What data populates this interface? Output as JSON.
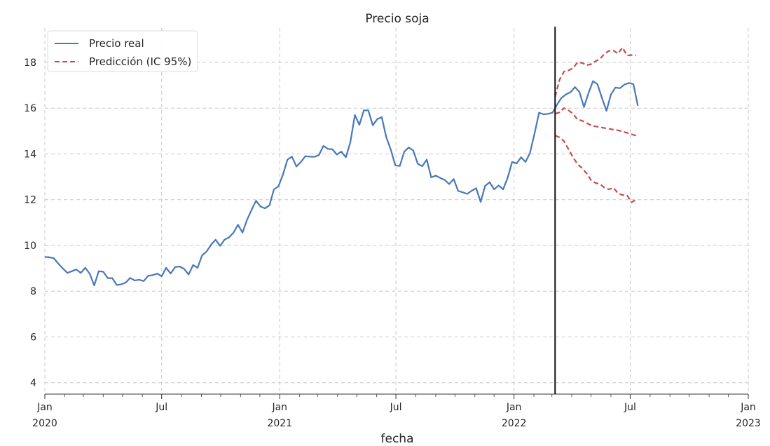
{
  "chart_data": {
    "type": "line",
    "title": "Precio soja",
    "xlabel": "fecha",
    "ylabel": "",
    "ylim": [
      3.5,
      19.5
    ],
    "xlim": [
      "2020-01-01",
      "2023-01-01"
    ],
    "grid": true,
    "legend_position": "top-left",
    "y_ticks": [
      "4",
      "6",
      "8",
      "10",
      "12",
      "14",
      "16",
      "18"
    ],
    "x_ticks": [
      {
        "date": "2020-01-01",
        "line1": "Jan",
        "line2": "2020"
      },
      {
        "date": "2020-07-01",
        "line1": "Jul",
        "line2": ""
      },
      {
        "date": "2021-01-01",
        "line1": "Jan",
        "line2": "2021"
      },
      {
        "date": "2021-07-01",
        "line1": "Jul",
        "line2": ""
      },
      {
        "date": "2022-01-01",
        "line1": "Jan",
        "line2": "2022"
      },
      {
        "date": "2022-07-01",
        "line1": "Jul",
        "line2": ""
      },
      {
        "date": "2023-01-01",
        "line1": "Jan",
        "line2": "2023"
      }
    ],
    "forecast_start": "2022-03-06",
    "series": [
      {
        "name": "Precio real",
        "color": "#4878b9",
        "style": "solid",
        "points": [
          [
            "2020-01-01",
            9.5
          ],
          [
            "2020-01-08",
            9.48
          ],
          [
            "2020-01-15",
            9.44
          ],
          [
            "2020-01-22",
            9.2
          ],
          [
            "2020-01-29",
            9.0
          ],
          [
            "2020-02-05",
            8.8
          ],
          [
            "2020-02-12",
            8.87
          ],
          [
            "2020-02-19",
            8.95
          ],
          [
            "2020-02-26",
            8.8
          ],
          [
            "2020-03-04",
            9.02
          ],
          [
            "2020-03-11",
            8.76
          ],
          [
            "2020-03-18",
            8.25
          ],
          [
            "2020-03-25",
            8.87
          ],
          [
            "2020-04-01",
            8.85
          ],
          [
            "2020-04-08",
            8.57
          ],
          [
            "2020-04-15",
            8.57
          ],
          [
            "2020-04-22",
            8.27
          ],
          [
            "2020-04-29",
            8.3
          ],
          [
            "2020-05-06",
            8.37
          ],
          [
            "2020-05-13",
            8.58
          ],
          [
            "2020-05-20",
            8.47
          ],
          [
            "2020-05-27",
            8.5
          ],
          [
            "2020-06-03",
            8.44
          ],
          [
            "2020-06-10",
            8.67
          ],
          [
            "2020-06-17",
            8.7
          ],
          [
            "2020-06-24",
            8.77
          ],
          [
            "2020-07-01",
            8.65
          ],
          [
            "2020-07-08",
            9.02
          ],
          [
            "2020-07-15",
            8.77
          ],
          [
            "2020-07-22",
            9.05
          ],
          [
            "2020-07-29",
            9.08
          ],
          [
            "2020-08-05",
            8.97
          ],
          [
            "2020-08-12",
            8.73
          ],
          [
            "2020-08-19",
            9.14
          ],
          [
            "2020-08-26",
            9.02
          ],
          [
            "2020-09-02",
            9.56
          ],
          [
            "2020-09-09",
            9.73
          ],
          [
            "2020-09-16",
            10.03
          ],
          [
            "2020-09-23",
            10.25
          ],
          [
            "2020-09-30",
            9.98
          ],
          [
            "2020-10-07",
            10.25
          ],
          [
            "2020-10-14",
            10.35
          ],
          [
            "2020-10-21",
            10.56
          ],
          [
            "2020-10-28",
            10.9
          ],
          [
            "2020-11-04",
            10.56
          ],
          [
            "2020-11-11",
            11.12
          ],
          [
            "2020-11-18",
            11.55
          ],
          [
            "2020-11-25",
            11.95
          ],
          [
            "2020-12-02",
            11.7
          ],
          [
            "2020-12-09",
            11.62
          ],
          [
            "2020-12-16",
            11.75
          ],
          [
            "2020-12-23",
            12.45
          ],
          [
            "2020-12-30",
            12.58
          ],
          [
            "2021-01-06",
            13.1
          ],
          [
            "2021-01-13",
            13.75
          ],
          [
            "2021-01-20",
            13.88
          ],
          [
            "2021-01-27",
            13.45
          ],
          [
            "2021-02-03",
            13.65
          ],
          [
            "2021-02-10",
            13.9
          ],
          [
            "2021-02-17",
            13.88
          ],
          [
            "2021-02-24",
            13.87
          ],
          [
            "2021-03-03",
            13.95
          ],
          [
            "2021-03-10",
            14.35
          ],
          [
            "2021-03-17",
            14.22
          ],
          [
            "2021-03-24",
            14.2
          ],
          [
            "2021-03-31",
            13.97
          ],
          [
            "2021-04-07",
            14.1
          ],
          [
            "2021-04-14",
            13.85
          ],
          [
            "2021-04-21",
            14.5
          ],
          [
            "2021-04-28",
            15.7
          ],
          [
            "2021-05-05",
            15.27
          ],
          [
            "2021-05-12",
            15.9
          ],
          [
            "2021-05-19",
            15.9
          ],
          [
            "2021-05-26",
            15.25
          ],
          [
            "2021-06-02",
            15.52
          ],
          [
            "2021-06-09",
            15.6
          ],
          [
            "2021-06-16",
            14.73
          ],
          [
            "2021-06-23",
            14.18
          ],
          [
            "2021-06-30",
            13.5
          ],
          [
            "2021-07-07",
            13.47
          ],
          [
            "2021-07-14",
            14.1
          ],
          [
            "2021-07-21",
            14.28
          ],
          [
            "2021-07-28",
            14.15
          ],
          [
            "2021-08-04",
            13.57
          ],
          [
            "2021-08-11",
            13.46
          ],
          [
            "2021-08-18",
            13.75
          ],
          [
            "2021-08-25",
            12.97
          ],
          [
            "2021-09-01",
            13.05
          ],
          [
            "2021-09-08",
            12.95
          ],
          [
            "2021-09-15",
            12.86
          ],
          [
            "2021-09-22",
            12.68
          ],
          [
            "2021-09-29",
            12.9
          ],
          [
            "2021-10-06",
            12.38
          ],
          [
            "2021-10-13",
            12.32
          ],
          [
            "2021-10-20",
            12.25
          ],
          [
            "2021-10-27",
            12.39
          ],
          [
            "2021-11-03",
            12.5
          ],
          [
            "2021-11-10",
            11.9
          ],
          [
            "2021-11-17",
            12.6
          ],
          [
            "2021-11-24",
            12.76
          ],
          [
            "2021-12-01",
            12.45
          ],
          [
            "2021-12-08",
            12.62
          ],
          [
            "2021-12-15",
            12.45
          ],
          [
            "2021-12-22",
            12.95
          ],
          [
            "2021-12-29",
            13.65
          ],
          [
            "2022-01-05",
            13.58
          ],
          [
            "2022-01-12",
            13.85
          ],
          [
            "2022-01-19",
            13.65
          ],
          [
            "2022-01-26",
            14.05
          ],
          [
            "2022-02-02",
            14.9
          ],
          [
            "2022-02-09",
            15.8
          ],
          [
            "2022-02-16",
            15.73
          ],
          [
            "2022-02-23",
            15.75
          ],
          [
            "2022-03-02",
            15.8
          ],
          [
            "2022-03-09",
            16.15
          ],
          [
            "2022-03-16",
            16.45
          ],
          [
            "2022-03-23",
            16.6
          ],
          [
            "2022-03-30",
            16.7
          ],
          [
            "2022-04-06",
            16.92
          ],
          [
            "2022-04-13",
            16.7
          ],
          [
            "2022-04-20",
            16.05
          ],
          [
            "2022-04-27",
            16.65
          ],
          [
            "2022-05-04",
            17.18
          ],
          [
            "2022-05-11",
            17.05
          ],
          [
            "2022-05-18",
            16.45
          ],
          [
            "2022-05-25",
            15.88
          ],
          [
            "2022-06-01",
            16.6
          ],
          [
            "2022-06-08",
            16.9
          ],
          [
            "2022-06-15",
            16.87
          ],
          [
            "2022-06-22",
            17.03
          ],
          [
            "2022-06-29",
            17.1
          ],
          [
            "2022-07-06",
            17.05
          ],
          [
            "2022-07-13",
            16.1
          ]
        ]
      },
      {
        "name": "Predicción (IC 95%)",
        "color": "#c44e52",
        "style": "dashed",
        "points": [
          [
            "2022-03-06",
            16.5
          ],
          [
            "2022-03-13",
            17.25
          ],
          [
            "2022-03-20",
            17.6
          ],
          [
            "2022-03-27",
            17.65
          ],
          [
            "2022-04-03",
            17.75
          ],
          [
            "2022-04-10",
            18.0
          ],
          [
            "2022-04-17",
            17.98
          ],
          [
            "2022-04-24",
            17.88
          ],
          [
            "2022-05-01",
            17.92
          ],
          [
            "2022-05-08",
            18.05
          ],
          [
            "2022-05-15",
            18.15
          ],
          [
            "2022-05-22",
            18.38
          ],
          [
            "2022-05-29",
            18.5
          ],
          [
            "2022-06-05",
            18.52
          ],
          [
            "2022-06-12",
            18.38
          ],
          [
            "2022-06-19",
            18.65
          ],
          [
            "2022-06-26",
            18.3
          ],
          [
            "2022-07-03",
            18.32
          ],
          [
            "2022-07-10",
            18.3
          ]
        ]
      },
      {
        "name": "",
        "color": "#c44e52",
        "style": "dashed",
        "points": [
          [
            "2022-03-06",
            15.75
          ],
          [
            "2022-03-13",
            15.82
          ],
          [
            "2022-03-20",
            16.0
          ],
          [
            "2022-03-27",
            15.9
          ],
          [
            "2022-04-03",
            15.75
          ],
          [
            "2022-04-10",
            15.5
          ],
          [
            "2022-04-17",
            15.45
          ],
          [
            "2022-04-24",
            15.35
          ],
          [
            "2022-05-01",
            15.25
          ],
          [
            "2022-05-08",
            15.2
          ],
          [
            "2022-05-15",
            15.17
          ],
          [
            "2022-05-22",
            15.13
          ],
          [
            "2022-05-29",
            15.1
          ],
          [
            "2022-06-05",
            15.06
          ],
          [
            "2022-06-12",
            15.03
          ],
          [
            "2022-06-19",
            14.98
          ],
          [
            "2022-06-26",
            14.92
          ],
          [
            "2022-07-03",
            14.86
          ],
          [
            "2022-07-10",
            14.8
          ]
        ]
      },
      {
        "name": "",
        "color": "#c44e52",
        "style": "dashed",
        "points": [
          [
            "2022-03-06",
            14.8
          ],
          [
            "2022-03-13",
            14.72
          ],
          [
            "2022-03-20",
            14.55
          ],
          [
            "2022-03-27",
            14.2
          ],
          [
            "2022-04-03",
            13.85
          ],
          [
            "2022-04-10",
            13.55
          ],
          [
            "2022-04-17",
            13.38
          ],
          [
            "2022-04-24",
            13.15
          ],
          [
            "2022-05-01",
            12.85
          ],
          [
            "2022-05-08",
            12.73
          ],
          [
            "2022-05-15",
            12.68
          ],
          [
            "2022-05-22",
            12.52
          ],
          [
            "2022-05-29",
            12.45
          ],
          [
            "2022-06-05",
            12.52
          ],
          [
            "2022-06-12",
            12.28
          ],
          [
            "2022-06-19",
            12.2
          ],
          [
            "2022-06-26",
            12.2
          ],
          [
            "2022-07-03",
            11.88
          ],
          [
            "2022-07-10",
            12.0
          ]
        ]
      }
    ]
  }
}
